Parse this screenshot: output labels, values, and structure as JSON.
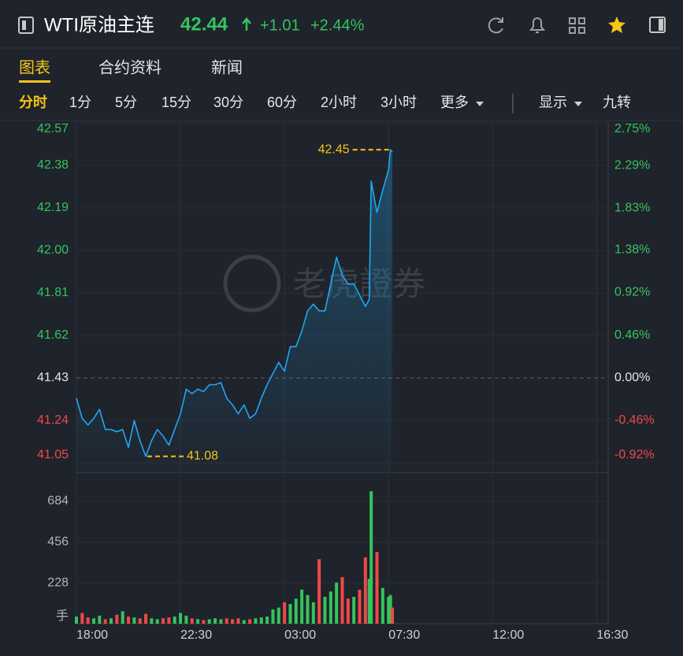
{
  "header": {
    "title": "WTI原油主连",
    "price": "42.44",
    "change": "+1.01",
    "change_pct": "+2.44%"
  },
  "tabs": [
    "图表",
    "合约资料",
    "新闻"
  ],
  "periods": [
    "分时",
    "1分",
    "5分",
    "15分",
    "30分",
    "60分",
    "2小时",
    "3小时",
    "更多"
  ],
  "options": [
    "显示",
    "九转"
  ],
  "watermark": "老虎證券",
  "chart_data": [
    {
      "type": "line",
      "color": "#1fa8f0",
      "x": [
        "18:00",
        "18:15",
        "18:30",
        "18:45",
        "19:00",
        "19:15",
        "19:30",
        "19:45",
        "20:00",
        "20:15",
        "20:30",
        "20:45",
        "21:00",
        "21:15",
        "21:30",
        "21:45",
        "22:00",
        "22:15",
        "22:30",
        "22:45",
        "23:00",
        "23:15",
        "23:30",
        "23:45",
        "00:00",
        "00:15",
        "00:30",
        "00:45",
        "01:00",
        "01:15",
        "01:30",
        "01:45",
        "02:00",
        "02:15",
        "02:30",
        "02:45",
        "03:00",
        "03:15",
        "03:30",
        "03:45",
        "04:00",
        "04:15",
        "04:30",
        "04:45",
        "05:00",
        "05:15",
        "05:30",
        "05:45",
        "06:00",
        "06:15",
        "06:30",
        "06:40",
        "06:45",
        "07:00",
        "07:15",
        "07:30",
        "07:35",
        "07:40"
      ],
      "values": [
        41.34,
        41.25,
        41.22,
        41.25,
        41.29,
        41.2,
        41.2,
        41.19,
        41.2,
        41.12,
        41.24,
        41.15,
        41.08,
        41.15,
        41.2,
        41.17,
        41.13,
        41.2,
        41.27,
        41.38,
        41.36,
        41.38,
        41.37,
        41.4,
        41.4,
        41.41,
        41.34,
        41.31,
        41.27,
        41.31,
        41.25,
        41.27,
        41.34,
        41.4,
        41.45,
        41.5,
        41.46,
        41.57,
        41.57,
        41.64,
        41.73,
        41.76,
        41.73,
        41.73,
        41.85,
        41.97,
        41.89,
        41.85,
        41.85,
        41.8,
        41.75,
        41.78,
        42.31,
        42.17,
        42.27,
        42.36,
        42.45,
        42.44
      ],
      "xlim": [
        "18:00",
        "17:00"
      ],
      "xticks": [
        "18:00",
        "22:30",
        "03:00",
        "07:30",
        "12:00",
        "16:30"
      ],
      "ylim": [
        41.05,
        42.57
      ],
      "yticks": [
        41.05,
        41.24,
        41.43,
        41.62,
        41.81,
        {
          "value": 42,
          "label": "42.00"
        },
        42.19,
        42.38,
        42.57
      ],
      "y2lim": [
        -0.92,
        2.75
      ],
      "y2ticks": [
        {
          "value": -0.92,
          "label": "-0.92%"
        },
        {
          "value": -0.46,
          "label": "-0.46%"
        },
        {
          "value": 0,
          "label": "0.00%"
        },
        {
          "value": 0.46,
          "label": "0.46%"
        },
        {
          "value": 0.92,
          "label": "0.92%"
        },
        {
          "value": 1.38,
          "label": "1.38%"
        },
        {
          "value": 1.83,
          "label": "1.83%"
        },
        {
          "value": 2.29,
          "label": "2.29%"
        },
        {
          "value": 2.75,
          "label": "2.75%"
        }
      ],
      "up_color": "#35c45d",
      "down_color": "#f04848",
      "flat_color": "#e6e6e6",
      "annotations": [
        {
          "x": "07:35",
          "value": 42.45,
          "color": "#f5c518"
        },
        {
          "x": "21:00",
          "value": 41.08,
          "color": "#f5c518"
        }
      ],
      "grid": true
    },
    {
      "type": "bar",
      "x": [
        "18:00",
        "18:15",
        "18:30",
        "18:45",
        "19:00",
        "19:15",
        "19:30",
        "19:45",
        "20:00",
        "20:15",
        "20:30",
        "20:45",
        "21:00",
        "21:15",
        "21:30",
        "21:45",
        "22:00",
        "22:15",
        "22:30",
        "22:45",
        "23:00",
        "23:15",
        "23:30",
        "23:45",
        "00:00",
        "00:15",
        "00:30",
        "00:45",
        "01:00",
        "01:15",
        "01:30",
        "01:45",
        "02:00",
        "02:15",
        "02:30",
        "02:45",
        "03:00",
        "03:15",
        "03:30",
        "03:45",
        "04:00",
        "04:15",
        "04:30",
        "04:45",
        "05:00",
        "05:15",
        "05:30",
        "05:45",
        "06:00",
        "06:15",
        "06:30",
        "06:40",
        "06:45",
        "07:00",
        "07:15",
        "07:30",
        "07:35",
        "07:40"
      ],
      "values": [
        40,
        60,
        35,
        30,
        45,
        25,
        30,
        50,
        70,
        40,
        35,
        30,
        55,
        30,
        25,
        30,
        35,
        40,
        60,
        45,
        30,
        25,
        20,
        25,
        30,
        25,
        30,
        25,
        30,
        20,
        25,
        30,
        35,
        40,
        80,
        90,
        120,
        110,
        140,
        190,
        160,
        120,
        360,
        150,
        180,
        230,
        260,
        140,
        150,
        190,
        370,
        250,
        740,
        400,
        200,
        150,
        160,
        90
      ],
      "ylim": [
        0,
        800
      ],
      "yticks": [
        228,
        456,
        684
      ],
      "unit": "手",
      "up_color": "#35c45d",
      "down_color": "#f04848"
    }
  ]
}
